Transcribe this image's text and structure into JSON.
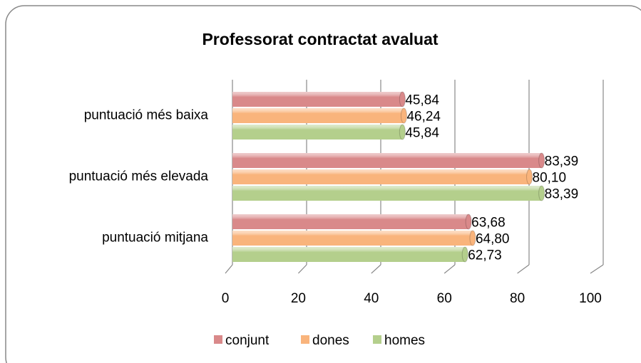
{
  "chart_data": {
    "type": "bar",
    "orientation": "horizontal",
    "title": "Professorat contractat avaluat",
    "categories": [
      "puntuació més baixa",
      "puntuació més elevada",
      "puntuació mitjana"
    ],
    "series": [
      {
        "name": "conjunt",
        "color": "#d9898a",
        "values": [
          45.84,
          83.39,
          63.68
        ],
        "value_labels": [
          "45,84",
          "83,39",
          "63,68"
        ]
      },
      {
        "name": "dones",
        "color": "#f9b47c",
        "values": [
          46.24,
          80.1,
          64.8
        ],
        "value_labels": [
          "46,24",
          "80,10",
          "64,80"
        ]
      },
      {
        "name": "homes",
        "color": "#b4cf8c",
        "values": [
          45.84,
          83.39,
          62.73
        ],
        "value_labels": [
          "45,84",
          "83,39",
          "62,73"
        ]
      }
    ],
    "xlim": [
      0,
      100
    ],
    "xticks": [
      0,
      20,
      40,
      60,
      80,
      100
    ],
    "grid": true,
    "legend": "bottom"
  }
}
